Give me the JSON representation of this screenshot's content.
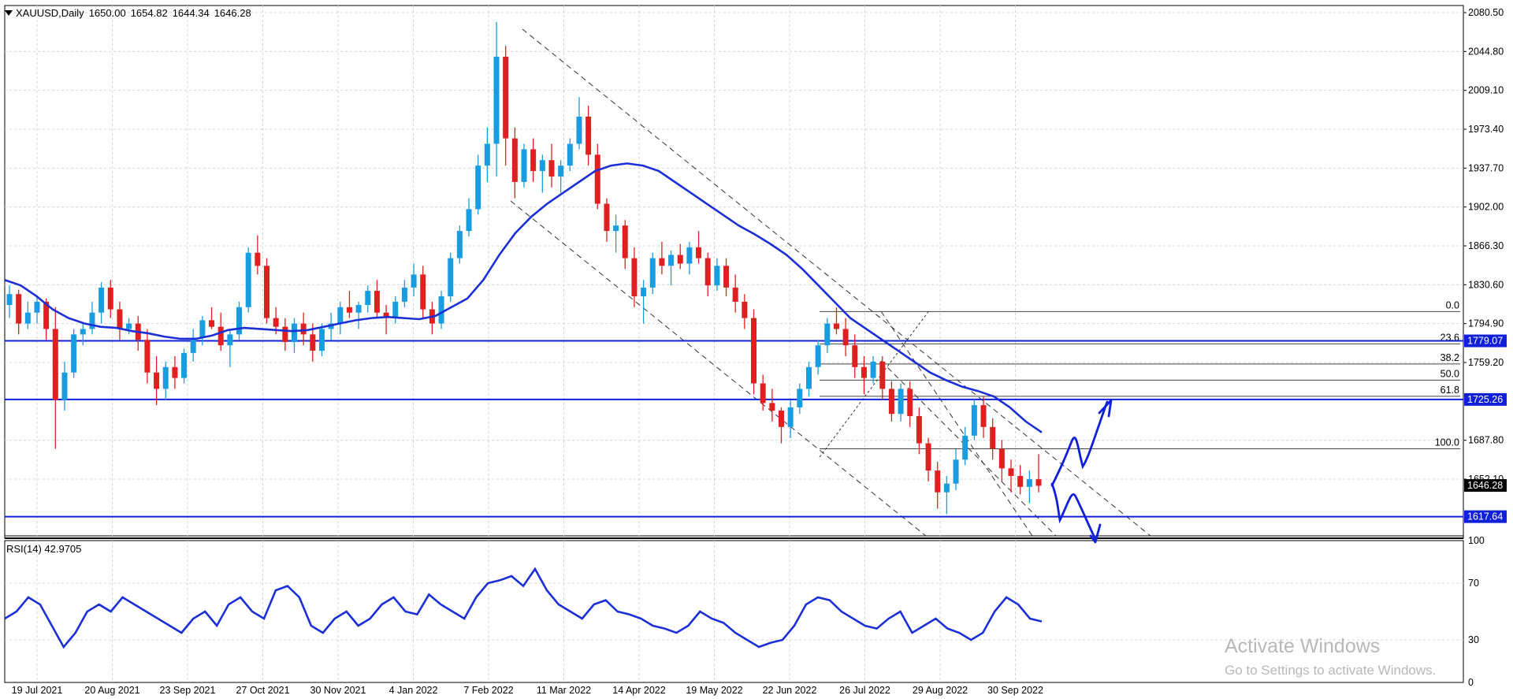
{
  "header": {
    "symbol": "XAUUSD,Daily",
    "open": "1650.00",
    "high": "1654.82",
    "low": "1644.34",
    "close": "1646.28"
  },
  "price_axis": {
    "labels": [
      "2080.50",
      "2044.80",
      "2009.10",
      "1973.40",
      "1937.70",
      "1902.00",
      "1866.30",
      "1830.60",
      "1794.90",
      "1759.20",
      "1687.80",
      "1652.10"
    ]
  },
  "price_tags": {
    "current": "1646.28",
    "level_upper": "1779.07",
    "level_mid": "1725.26",
    "level_low": "1617.64"
  },
  "fibonacci": {
    "levels": [
      "0.0",
      "23.6",
      "38.2",
      "50.0",
      "61.8",
      "100.0"
    ]
  },
  "rsi": {
    "label": "RSI(14) 42.9705",
    "axis_labels": [
      "100",
      "70",
      "30",
      "0"
    ]
  },
  "time_axis": {
    "labels": [
      "19 Jul 2021",
      "20 Aug 2021",
      "23 Sep 2021",
      "27 Oct 2021",
      "30 Nov 2021",
      "4 Jan 2022",
      "7 Feb 2022",
      "11 Mar 2022",
      "14 Apr 2022",
      "19 May 2022",
      "22 Jun 2022",
      "26 Jul 2022",
      "29 Aug 2022",
      "30 Sep 2022"
    ]
  },
  "watermark": {
    "title": "Activate Windows",
    "subtitle": "Go to Settings to activate Windows."
  },
  "colors": {
    "bull": "#1a9de0",
    "bear": "#e02020",
    "ma": "#1c2fd6",
    "level": "#1020d8",
    "grid": "#d4d4d4"
  },
  "chart_data": {
    "type": "candlestick",
    "series": [
      {
        "name": "XAUUSD,Daily",
        "values": [
          [
            1812,
            1830,
            1800,
            1822
          ],
          [
            1822,
            1826,
            1785,
            1795
          ],
          [
            1795,
            1815,
            1790,
            1805
          ],
          [
            1805,
            1820,
            1795,
            1815
          ],
          [
            1815,
            1818,
            1780,
            1790
          ],
          [
            1790,
            1810,
            1680,
            1725
          ],
          [
            1725,
            1760,
            1715,
            1750
          ],
          [
            1750,
            1790,
            1745,
            1785
          ],
          [
            1785,
            1795,
            1775,
            1790
          ],
          [
            1790,
            1815,
            1785,
            1805
          ],
          [
            1805,
            1833,
            1795,
            1828
          ],
          [
            1828,
            1835,
            1800,
            1808
          ],
          [
            1808,
            1815,
            1780,
            1790
          ],
          [
            1790,
            1800,
            1785,
            1795
          ],
          [
            1795,
            1802,
            1770,
            1780
          ],
          [
            1780,
            1790,
            1740,
            1750
          ],
          [
            1750,
            1765,
            1720,
            1735
          ],
          [
            1735,
            1760,
            1725,
            1755
          ],
          [
            1755,
            1765,
            1735,
            1745
          ],
          [
            1745,
            1772,
            1740,
            1768
          ],
          [
            1768,
            1790,
            1760,
            1782
          ],
          [
            1782,
            1802,
            1775,
            1798
          ],
          [
            1798,
            1810,
            1790,
            1792
          ],
          [
            1792,
            1805,
            1770,
            1775
          ],
          [
            1775,
            1790,
            1755,
            1785
          ],
          [
            1785,
            1815,
            1780,
            1810
          ],
          [
            1810,
            1865,
            1805,
            1860
          ],
          [
            1860,
            1876,
            1840,
            1848
          ],
          [
            1848,
            1855,
            1795,
            1800
          ],
          [
            1800,
            1810,
            1785,
            1792
          ],
          [
            1792,
            1800,
            1770,
            1778
          ],
          [
            1778,
            1800,
            1768,
            1795
          ],
          [
            1795,
            1805,
            1775,
            1785
          ],
          [
            1785,
            1795,
            1760,
            1770
          ],
          [
            1770,
            1795,
            1765,
            1790
          ],
          [
            1790,
            1805,
            1780,
            1795
          ],
          [
            1795,
            1815,
            1785,
            1810
          ],
          [
            1810,
            1825,
            1800,
            1805
          ],
          [
            1805,
            1815,
            1790,
            1812
          ],
          [
            1812,
            1830,
            1805,
            1825
          ],
          [
            1825,
            1835,
            1800,
            1805
          ],
          [
            1805,
            1812,
            1785,
            1800
          ],
          [
            1800,
            1820,
            1795,
            1815
          ],
          [
            1815,
            1835,
            1810,
            1828
          ],
          [
            1828,
            1850,
            1820,
            1840
          ],
          [
            1840,
            1848,
            1800,
            1808
          ],
          [
            1808,
            1815,
            1785,
            1795
          ],
          [
            1795,
            1825,
            1790,
            1820
          ],
          [
            1820,
            1860,
            1815,
            1855
          ],
          [
            1855,
            1885,
            1850,
            1880
          ],
          [
            1880,
            1910,
            1875,
            1900
          ],
          [
            1900,
            1950,
            1895,
            1940
          ],
          [
            1940,
            1975,
            1925,
            1960
          ],
          [
            1960,
            2072,
            1930,
            2040
          ],
          [
            2040,
            2050,
            1940,
            1965
          ],
          [
            1965,
            1975,
            1910,
            1925
          ],
          [
            1925,
            1960,
            1920,
            1955
          ],
          [
            1955,
            1965,
            1925,
            1935
          ],
          [
            1935,
            1950,
            1915,
            1945
          ],
          [
            1945,
            1960,
            1920,
            1930
          ],
          [
            1930,
            1945,
            1915,
            1940
          ],
          [
            1940,
            1965,
            1935,
            1960
          ],
          [
            1960,
            2003,
            1955,
            1985
          ],
          [
            1985,
            1995,
            1940,
            1950
          ],
          [
            1950,
            1960,
            1900,
            1905
          ],
          [
            1905,
            1910,
            1870,
            1880
          ],
          [
            1880,
            1895,
            1860,
            1885
          ],
          [
            1885,
            1890,
            1845,
            1855
          ],
          [
            1855,
            1865,
            1810,
            1820
          ],
          [
            1820,
            1835,
            1795,
            1828
          ],
          [
            1828,
            1860,
            1822,
            1855
          ],
          [
            1855,
            1870,
            1840,
            1848
          ],
          [
            1848,
            1862,
            1830,
            1858
          ],
          [
            1858,
            1868,
            1845,
            1850
          ],
          [
            1850,
            1870,
            1840,
            1865
          ],
          [
            1865,
            1880,
            1850,
            1855
          ],
          [
            1855,
            1860,
            1820,
            1830
          ],
          [
            1830,
            1855,
            1825,
            1848
          ],
          [
            1848,
            1855,
            1820,
            1828
          ],
          [
            1828,
            1840,
            1805,
            1815
          ],
          [
            1815,
            1822,
            1790,
            1800
          ],
          [
            1800,
            1808,
            1730,
            1740
          ],
          [
            1740,
            1748,
            1715,
            1722
          ],
          [
            1722,
            1735,
            1705,
            1715
          ],
          [
            1715,
            1718,
            1685,
            1700
          ],
          [
            1700,
            1725,
            1690,
            1718
          ],
          [
            1718,
            1740,
            1712,
            1735
          ],
          [
            1735,
            1760,
            1728,
            1755
          ],
          [
            1755,
            1780,
            1748,
            1775
          ],
          [
            1775,
            1800,
            1768,
            1795
          ],
          [
            1795,
            1810,
            1785,
            1790
          ],
          [
            1790,
            1800,
            1765,
            1775
          ],
          [
            1775,
            1785,
            1745,
            1755
          ],
          [
            1755,
            1765,
            1730,
            1745
          ],
          [
            1745,
            1765,
            1740,
            1760
          ],
          [
            1760,
            1765,
            1725,
            1735
          ],
          [
            1735,
            1742,
            1705,
            1712
          ],
          [
            1712,
            1740,
            1705,
            1735
          ],
          [
            1735,
            1742,
            1700,
            1710
          ],
          [
            1710,
            1718,
            1675,
            1685
          ],
          [
            1685,
            1690,
            1650,
            1660
          ],
          [
            1660,
            1668,
            1625,
            1640
          ],
          [
            1640,
            1655,
            1620,
            1648
          ],
          [
            1648,
            1680,
            1642,
            1670
          ],
          [
            1670,
            1700,
            1665,
            1692
          ],
          [
            1692,
            1725,
            1688,
            1720
          ],
          [
            1720,
            1728,
            1690,
            1700
          ],
          [
            1700,
            1708,
            1670,
            1680
          ],
          [
            1680,
            1688,
            1650,
            1662
          ],
          [
            1662,
            1670,
            1640,
            1655
          ],
          [
            1655,
            1665,
            1638,
            1645
          ],
          [
            1645,
            1660,
            1630,
            1652
          ],
          [
            1652,
            1675,
            1640,
            1646
          ]
        ]
      },
      {
        "name": "MA",
        "values": [
          1835,
          1830,
          1820,
          1808,
          1800,
          1795,
          1792,
          1791,
          1788,
          1786,
          1783,
          1781,
          1781,
          1784,
          1789,
          1791,
          1790,
          1789,
          1788,
          1789,
          1792,
          1795,
          1798,
          1800,
          1801,
          1800,
          1799,
          1802,
          1810,
          1818,
          1835,
          1858,
          1878,
          1893,
          1905,
          1915,
          1925,
          1935,
          1940,
          1942,
          1940,
          1935,
          1925,
          1915,
          1905,
          1895,
          1885,
          1877,
          1868,
          1858,
          1845,
          1830,
          1815,
          1800,
          1790,
          1780,
          1770,
          1760,
          1750,
          1743,
          1737,
          1733,
          1728,
          1718,
          1705,
          1695
        ]
      },
      {
        "name": "RSI(14)",
        "values": [
          45,
          50,
          60,
          55,
          40,
          25,
          35,
          50,
          55,
          50,
          60,
          55,
          50,
          45,
          40,
          35,
          45,
          50,
          40,
          55,
          60,
          50,
          45,
          65,
          68,
          60,
          40,
          35,
          45,
          50,
          40,
          45,
          55,
          60,
          50,
          48,
          62,
          55,
          50,
          45,
          60,
          70,
          72,
          75,
          68,
          80,
          65,
          55,
          50,
          45,
          55,
          58,
          50,
          48,
          45,
          40,
          38,
          35,
          40,
          50,
          45,
          42,
          35,
          30,
          25,
          28,
          30,
          40,
          55,
          60,
          58,
          50,
          45,
          40,
          38,
          45,
          50,
          35,
          40,
          45,
          38,
          35,
          30,
          35,
          50,
          60,
          55,
          45,
          43
        ]
      }
    ],
    "ylim": [
      1600,
      2087
    ],
    "rsi_ylim": [
      0,
      100
    ],
    "annotations": {
      "horizontal_levels": [
        1779.07,
        1725.26,
        1617.64
      ],
      "fib_high": 1806.0,
      "fib_low": 1680.0
    }
  }
}
